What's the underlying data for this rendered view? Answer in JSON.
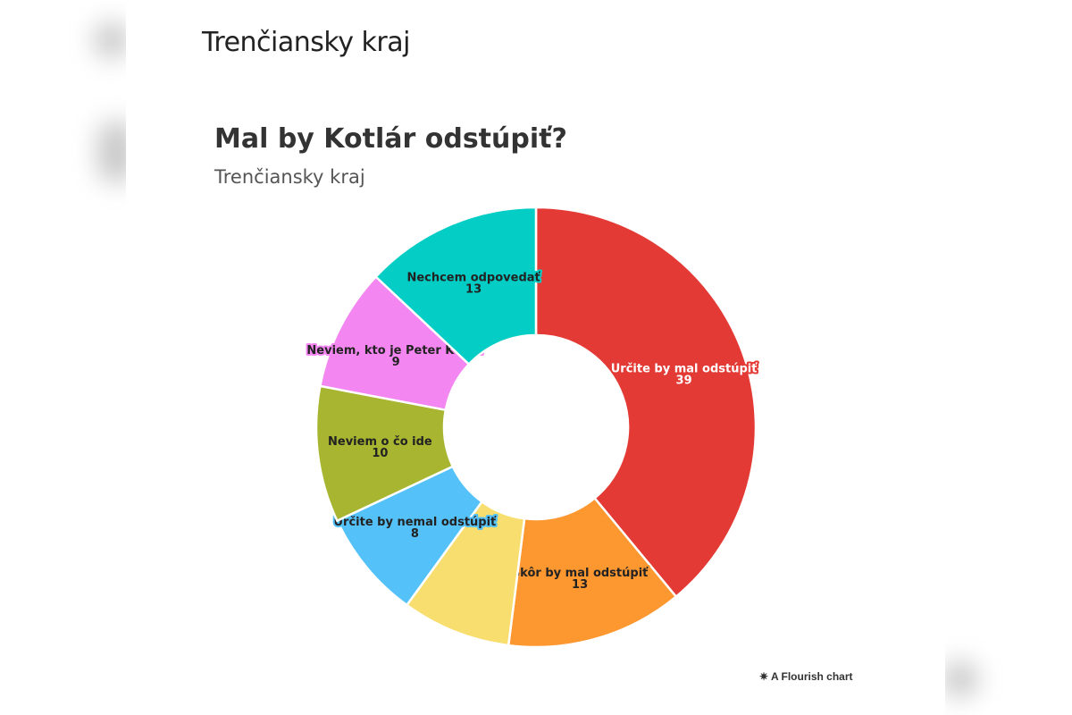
{
  "header": {
    "title": "Trenčiansky kraj"
  },
  "chart_data": {
    "type": "pie",
    "variant": "donut",
    "title": "Mal by Kotlár odstúpiť?",
    "subtitle": "Trenčiansky kraj",
    "slices": [
      {
        "label": "Určite by mal odstúpiť",
        "value": 39,
        "color": "#e33a35"
      },
      {
        "label": "Skôr by mal odstúpiť",
        "value": 13,
        "color": "#fd9830"
      },
      {
        "label": "",
        "value": 8,
        "color": "#f8de6e"
      },
      {
        "label": "Určite by nemal odstúpiť",
        "value": 8,
        "color": "#54c2f8"
      },
      {
        "label": "Neviem o čo ide",
        "value": 10,
        "color": "#a8b530"
      },
      {
        "label": "Neviem, kto je Peter Kotlár",
        "value": 9,
        "color": "#f386f0"
      },
      {
        "label": "Nechcem odpovedať",
        "value": 13,
        "color": "#03cdc4"
      }
    ]
  },
  "footer": {
    "credit": "A Flourish chart",
    "credit_icon": "flourish-asterisk-icon"
  }
}
